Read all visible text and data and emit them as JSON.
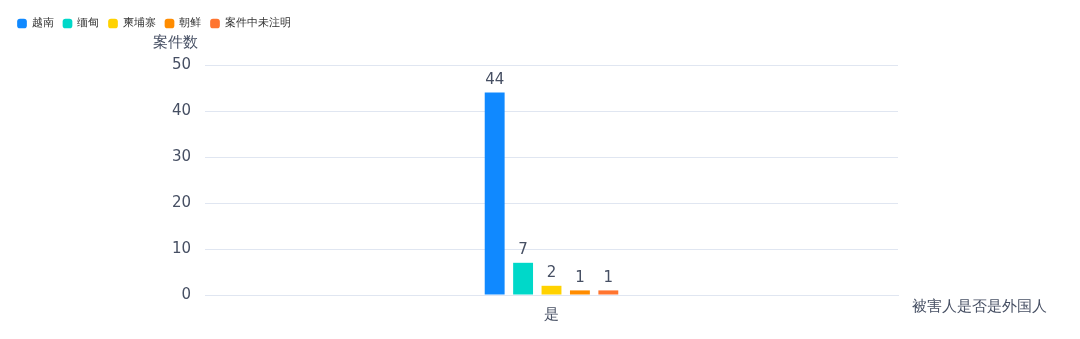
{
  "chart_data": {
    "type": "bar",
    "xlabel": "被害人是否是外国人",
    "ylabel": "案件数",
    "categories": [
      "是"
    ],
    "series": [
      {
        "name": "越南",
        "color": "#1089ff",
        "values": [
          44
        ]
      },
      {
        "name": "缅甸",
        "color": "#00d8c9",
        "values": [
          7
        ]
      },
      {
        "name": "柬埔寨",
        "color": "#ffd200",
        "values": [
          2
        ]
      },
      {
        "name": "朝鲜",
        "color": "#ff8c00",
        "values": [
          1
        ]
      },
      {
        "name": "案件中未注明",
        "color": "#ff7530",
        "values": [
          1
        ]
      }
    ],
    "ylim": [
      0,
      50
    ],
    "yticks": [
      0,
      10,
      20,
      30,
      40,
      50
    ],
    "grid": "y",
    "legend": "top left",
    "data_labels": true
  }
}
